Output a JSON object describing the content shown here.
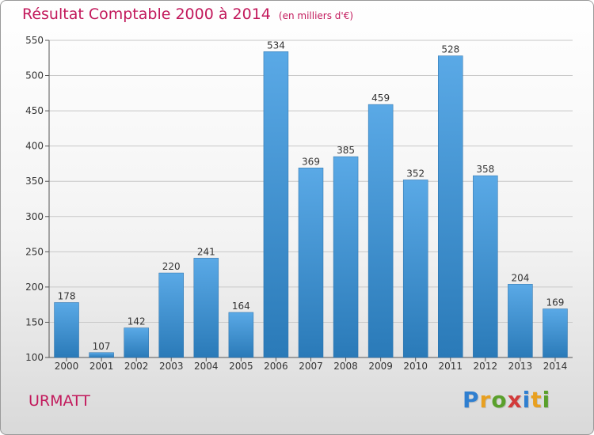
{
  "title": "Résultat Comptable 2000 à 2014",
  "subtitle": "(en milliers d'€)",
  "place": "URMATT",
  "logo": {
    "letters": [
      "P",
      "r",
      "o",
      "x",
      "i",
      "t",
      "i"
    ],
    "colors": [
      "#2f7fd0",
      "#e8a020",
      "#5aa02c",
      "#d23b3b",
      "#2f7fd0",
      "#e8a020",
      "#5aa02c"
    ]
  },
  "colors": {
    "accent": "#c2185b",
    "bar_top": "#5aa9e6",
    "bar_bottom": "#2a7ab8",
    "grid": "#c8c8c8"
  },
  "chart_data": {
    "type": "bar",
    "categories": [
      "2000",
      "2001",
      "2002",
      "2003",
      "2004",
      "2005",
      "2006",
      "2007",
      "2008",
      "2009",
      "2010",
      "2011",
      "2012",
      "2013",
      "2014"
    ],
    "values": [
      178,
      107,
      142,
      220,
      241,
      164,
      534,
      369,
      385,
      459,
      352,
      528,
      358,
      204,
      169
    ],
    "ylim": [
      100,
      550
    ],
    "yticks": [
      100,
      150,
      200,
      250,
      300,
      350,
      400,
      450,
      500,
      550
    ],
    "grid": true,
    "xlabel": "",
    "ylabel": ""
  }
}
